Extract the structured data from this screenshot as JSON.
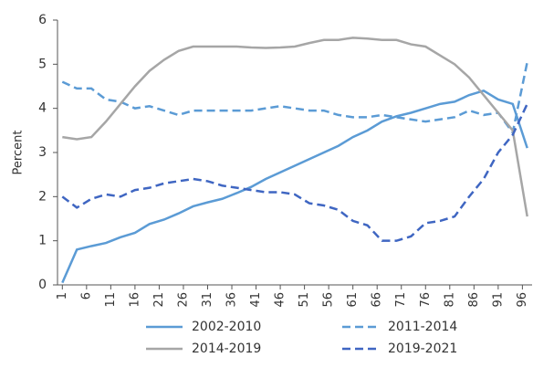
{
  "chart_data": {
    "type": "line",
    "y_label": "Percent",
    "x": [
      1,
      4,
      7,
      10,
      13,
      16,
      19,
      22,
      25,
      28,
      31,
      34,
      37,
      40,
      43,
      46,
      49,
      52,
      55,
      58,
      61,
      64,
      67,
      70,
      73,
      76,
      79,
      82,
      85,
      88,
      91,
      94,
      97
    ],
    "xlim": [
      0,
      98
    ],
    "xticks": [
      1,
      6,
      11,
      16,
      21,
      26,
      31,
      36,
      41,
      46,
      51,
      56,
      61,
      66,
      71,
      76,
      81,
      86,
      91,
      96
    ],
    "ylim": [
      0,
      6
    ],
    "yticks": [
      0,
      1,
      2,
      3,
      4,
      5,
      6
    ],
    "series": [
      {
        "name": "2002-2010",
        "color": "#5b9bd5",
        "dash": false,
        "values": [
          0.05,
          0.8,
          0.88,
          0.95,
          1.08,
          1.18,
          1.38,
          1.48,
          1.62,
          1.78,
          1.87,
          1.95,
          2.08,
          2.22,
          2.4,
          2.55,
          2.7,
          2.85,
          3.0,
          3.15,
          3.35,
          3.5,
          3.7,
          3.82,
          3.9,
          4.0,
          4.1,
          4.15,
          4.3,
          4.4,
          4.2,
          4.1,
          3.1
        ]
      },
      {
        "name": "2011-2014",
        "color": "#5b9bd5",
        "dash": true,
        "values": [
          4.6,
          4.45,
          4.45,
          4.2,
          4.15,
          4.0,
          4.05,
          3.95,
          3.85,
          3.95,
          3.95,
          3.95,
          3.95,
          3.95,
          4.0,
          4.05,
          4.0,
          3.95,
          3.95,
          3.85,
          3.8,
          3.8,
          3.85,
          3.8,
          3.75,
          3.7,
          3.75,
          3.8,
          3.95,
          3.85,
          3.9,
          3.45,
          5.05
        ]
      },
      {
        "name": "2014-2019",
        "color": "#a6a6a6",
        "dash": false,
        "values": [
          3.35,
          3.3,
          3.35,
          3.7,
          4.1,
          4.5,
          4.85,
          5.1,
          5.3,
          5.4,
          5.4,
          5.4,
          5.4,
          5.38,
          5.37,
          5.38,
          5.4,
          5.48,
          5.55,
          5.55,
          5.6,
          5.58,
          5.55,
          5.55,
          5.45,
          5.4,
          5.2,
          5.0,
          4.7,
          4.3,
          3.9,
          3.5,
          1.55
        ]
      },
      {
        "name": "2019-2021",
        "color": "#3f66c2",
        "dash": true,
        "values": [
          2.0,
          1.75,
          1.95,
          2.05,
          2.0,
          2.15,
          2.2,
          2.3,
          2.35,
          2.4,
          2.35,
          2.25,
          2.2,
          2.15,
          2.1,
          2.1,
          2.05,
          1.85,
          1.8,
          1.7,
          1.45,
          1.35,
          1.0,
          1.0,
          1.1,
          1.4,
          1.45,
          1.55,
          2.0,
          2.4,
          3.0,
          3.4,
          4.1
        ]
      }
    ]
  }
}
